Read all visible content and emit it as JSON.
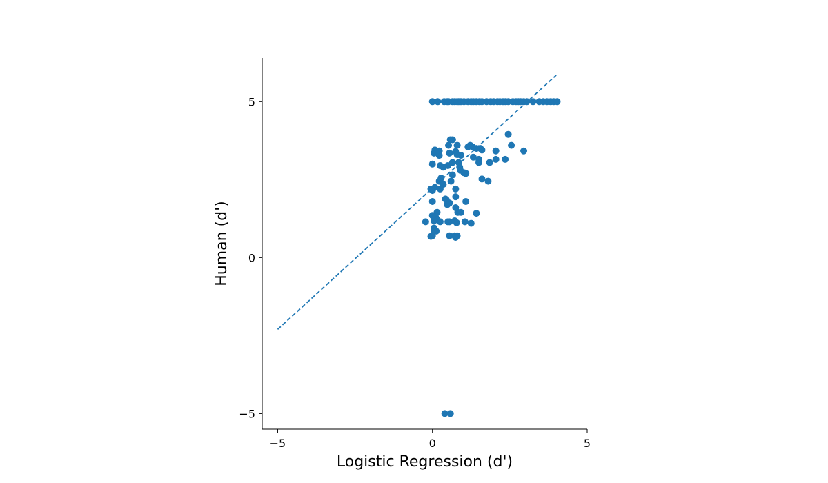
{
  "chart_data": {
    "type": "scatter",
    "title": "",
    "xlabel": "Logistic Regression (d')",
    "ylabel": "Human (d')",
    "xlim": [
      -5.5,
      5
    ],
    "ylim": [
      -5.5,
      6.4
    ],
    "x_ticks": [
      -5,
      0,
      5
    ],
    "y_ticks": [
      -5,
      0,
      5
    ],
    "x_tick_labels": [
      "−5",
      "0",
      "5"
    ],
    "y_tick_labels": [
      "−5",
      "0",
      "5"
    ],
    "grid": false,
    "point_color": "#1f77b4",
    "reference_line": {
      "style": "dashed",
      "color": "#1f77b4",
      "x": [
        -5,
        4
      ],
      "y": [
        -2.3,
        5.85
      ]
    },
    "series": [
      {
        "points": [
          [
            0.0,
            5
          ],
          [
            0.17,
            5
          ],
          [
            0.38,
            5
          ],
          [
            0.48,
            5
          ],
          [
            0.52,
            5
          ],
          [
            0.65,
            5
          ],
          [
            0.72,
            5
          ],
          [
            0.8,
            5
          ],
          [
            0.85,
            5
          ],
          [
            0.92,
            5
          ],
          [
            1.02,
            5
          ],
          [
            1.15,
            5
          ],
          [
            1.25,
            5
          ],
          [
            1.32,
            5
          ],
          [
            1.42,
            5
          ],
          [
            1.52,
            5
          ],
          [
            1.6,
            5
          ],
          [
            1.75,
            5
          ],
          [
            1.88,
            5
          ],
          [
            1.98,
            5
          ],
          [
            2.1,
            5
          ],
          [
            2.18,
            5
          ],
          [
            2.28,
            5
          ],
          [
            2.36,
            5
          ],
          [
            2.45,
            5
          ],
          [
            2.6,
            5
          ],
          [
            2.7,
            5
          ],
          [
            2.78,
            5
          ],
          [
            2.85,
            5
          ],
          [
            2.95,
            5
          ],
          [
            3.05,
            5
          ],
          [
            3.25,
            5
          ],
          [
            3.45,
            5
          ],
          [
            3.58,
            5
          ],
          [
            3.7,
            5
          ],
          [
            3.82,
            5
          ],
          [
            3.92,
            5
          ],
          [
            4.03,
            5
          ],
          [
            2.45,
            3.95
          ],
          [
            2.55,
            3.6
          ],
          [
            2.95,
            3.42
          ],
          [
            2.05,
            3.42
          ],
          [
            2.05,
            3.15
          ],
          [
            2.35,
            3.15
          ],
          [
            1.85,
            3.05
          ],
          [
            1.8,
            2.45
          ],
          [
            1.6,
            2.52
          ],
          [
            1.6,
            3.45
          ],
          [
            1.55,
            3.5
          ],
          [
            1.42,
            3.5
          ],
          [
            1.5,
            3.15
          ],
          [
            1.5,
            3.05
          ],
          [
            1.32,
            3.22
          ],
          [
            1.3,
            3.55
          ],
          [
            1.22,
            3.6
          ],
          [
            1.15,
            3.55
          ],
          [
            0.65,
            3.78
          ],
          [
            0.58,
            3.78
          ],
          [
            0.52,
            3.6
          ],
          [
            0.8,
            3.6
          ],
          [
            0.55,
            3.35
          ],
          [
            0.75,
            3.4
          ],
          [
            0.92,
            3.28
          ],
          [
            0.8,
            3.3
          ],
          [
            0.65,
            3.05
          ],
          [
            0.85,
            3.05
          ],
          [
            0.88,
            2.9
          ],
          [
            0.9,
            2.8
          ],
          [
            1.02,
            2.72
          ],
          [
            1.08,
            2.7
          ],
          [
            0.65,
            2.65
          ],
          [
            0.5,
            2.95
          ],
          [
            0.35,
            2.9
          ],
          [
            0.25,
            2.95
          ],
          [
            0.05,
            3.35
          ],
          [
            0.08,
            3.45
          ],
          [
            0.22,
            3.42
          ],
          [
            0.22,
            3.28
          ],
          [
            0.0,
            3.0
          ],
          [
            0.28,
            2.55
          ],
          [
            0.22,
            2.45
          ],
          [
            0.35,
            2.35
          ],
          [
            0.25,
            2.2
          ],
          [
            0.6,
            2.45
          ],
          [
            0.75,
            2.2
          ],
          [
            0.08,
            2.25
          ],
          [
            0.0,
            2.15
          ],
          [
            -0.05,
            2.2
          ],
          [
            0.42,
            1.88
          ],
          [
            0.48,
            1.7
          ],
          [
            0.55,
            1.75
          ],
          [
            0.45,
            1.85
          ],
          [
            0.75,
            1.95
          ],
          [
            0.75,
            1.6
          ],
          [
            0.82,
            1.45
          ],
          [
            0.92,
            1.45
          ],
          [
            1.08,
            1.8
          ],
          [
            1.42,
            1.42
          ],
          [
            0.0,
            1.8
          ],
          [
            0.0,
            1.35
          ],
          [
            0.15,
            1.45
          ],
          [
            0.1,
            1.3
          ],
          [
            0.15,
            1.22
          ],
          [
            0.05,
            1.18
          ],
          [
            0.25,
            1.15
          ],
          [
            -0.22,
            1.15
          ],
          [
            0.5,
            1.15
          ],
          [
            0.55,
            1.15
          ],
          [
            0.72,
            1.18
          ],
          [
            0.78,
            1.12
          ],
          [
            1.05,
            1.15
          ],
          [
            1.25,
            1.1
          ],
          [
            0.05,
            0.95
          ],
          [
            0.05,
            0.85
          ],
          [
            0.12,
            0.85
          ],
          [
            -0.05,
            0.68
          ],
          [
            0.0,
            0.7
          ],
          [
            0.55,
            0.7
          ],
          [
            0.72,
            0.7
          ],
          [
            0.8,
            0.7
          ],
          [
            0.75,
            0.65
          ],
          [
            0.4,
            -5
          ],
          [
            0.58,
            -5
          ]
        ]
      }
    ]
  }
}
